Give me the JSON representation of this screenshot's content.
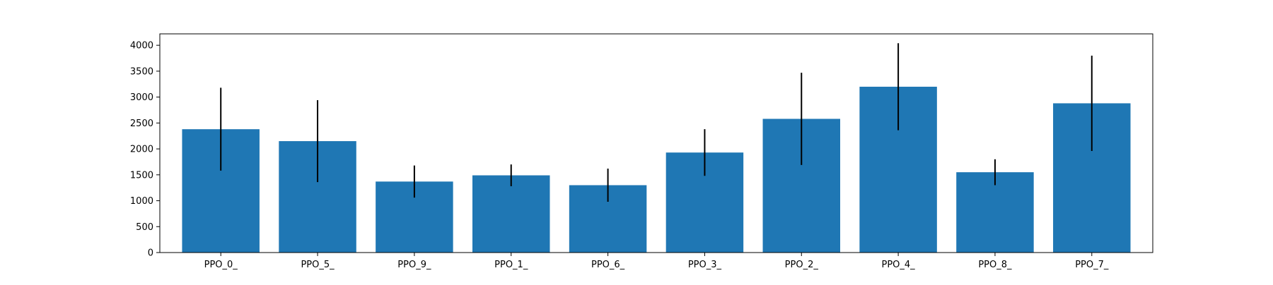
{
  "chart_data": {
    "type": "bar",
    "title": "",
    "xlabel": "",
    "ylabel": "",
    "categories": [
      "PPO_0_",
      "PPO_5_",
      "PPO_9_",
      "PPO_1_",
      "PPO_6_",
      "PPO_3_",
      "PPO_2_",
      "PPO_4_",
      "PPO_8_",
      "PPO_7_"
    ],
    "values": [
      2380,
      2150,
      1370,
      1490,
      1300,
      1930,
      2580,
      3200,
      1550,
      2880
    ],
    "errors": [
      800,
      790,
      310,
      210,
      320,
      450,
      890,
      840,
      250,
      920
    ],
    "ylim": [
      0,
      4220
    ],
    "yticks": [
      0,
      500,
      1000,
      1500,
      2000,
      2500,
      3000,
      3500,
      4000
    ],
    "bar_color": "#1f77b4",
    "error_color": "#000000",
    "grid": false,
    "legend": "none"
  }
}
